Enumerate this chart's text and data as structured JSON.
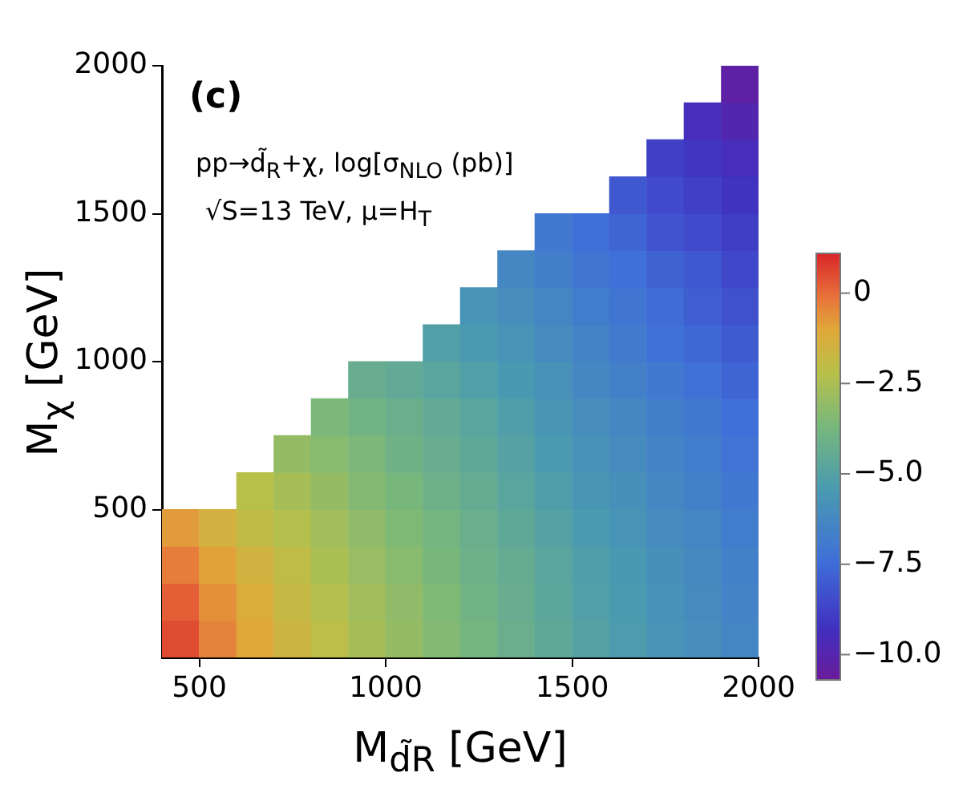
{
  "chart_data": {
    "type": "scatter",
    "xlabel": "M$_{d̃R}$ [GeV]",
    "ylabel": "M$_{χ}$ [GeV]",
    "annotations": [
      "(c)",
      "pp→d̃$_{R}$+χ, log[σ$_{NLO}$ (pb)]",
      "√S=13 TeV, μ=H$_{T}$"
    ],
    "x": [
      450,
      450,
      450,
      450,
      550,
      550,
      550,
      550,
      650,
      650,
      650,
      650,
      650,
      750,
      750,
      750,
      750,
      750,
      750,
      850,
      850,
      850,
      850,
      850,
      850,
      850,
      950,
      950,
      950,
      950,
      950,
      950,
      950,
      950,
      1050,
      1050,
      1050,
      1050,
      1050,
      1050,
      1050,
      1050,
      1150,
      1150,
      1150,
      1150,
      1150,
      1150,
      1150,
      1150,
      1150,
      1250,
      1250,
      1250,
      1250,
      1250,
      1250,
      1250,
      1250,
      1250,
      1250,
      1350,
      1350,
      1350,
      1350,
      1350,
      1350,
      1350,
      1350,
      1350,
      1350,
      1350,
      1450,
      1450,
      1450,
      1450,
      1450,
      1450,
      1450,
      1450,
      1450,
      1450,
      1450,
      1450,
      1550,
      1550,
      1550,
      1550,
      1550,
      1550,
      1550,
      1550,
      1550,
      1550,
      1550,
      1550,
      1650,
      1650,
      1650,
      1650,
      1650,
      1650,
      1650,
      1650,
      1650,
      1650,
      1650,
      1650,
      1650,
      1750,
      1750,
      1750,
      1750,
      1750,
      1750,
      1750,
      1750,
      1750,
      1750,
      1750,
      1750,
      1750,
      1750,
      1850,
      1850,
      1850,
      1850,
      1850,
      1850,
      1850,
      1850,
      1850,
      1850,
      1850,
      1850,
      1850,
      1850,
      1850,
      1950,
      1950,
      1950,
      1950,
      1950,
      1950,
      1950,
      1950,
      1950,
      1950,
      1950,
      1950,
      1950,
      1950,
      1950,
      1950
    ],
    "values": [
      62.5,
      187.5,
      312.5,
      437.5,
      62.5,
      187.5,
      312.5,
      437.5,
      62.5,
      187.5,
      312.5,
      437.5,
      562.5,
      62.5,
      187.5,
      312.5,
      437.5,
      562.5,
      687.5,
      62.5,
      187.5,
      312.5,
      437.5,
      562.5,
      687.5,
      812.5,
      62.5,
      187.5,
      312.5,
      437.5,
      562.5,
      687.5,
      812.5,
      937.5,
      62.5,
      187.5,
      312.5,
      437.5,
      562.5,
      687.5,
      812.5,
      937.5,
      62.5,
      187.5,
      312.5,
      437.5,
      562.5,
      687.5,
      812.5,
      937.5,
      1062.5,
      62.5,
      187.5,
      312.5,
      437.5,
      562.5,
      687.5,
      812.5,
      937.5,
      1062.5,
      1187.5,
      62.5,
      187.5,
      312.5,
      437.5,
      562.5,
      687.5,
      812.5,
      937.5,
      1062.5,
      1187.5,
      1312.5,
      62.5,
      187.5,
      312.5,
      437.5,
      562.5,
      687.5,
      812.5,
      937.5,
      1062.5,
      1187.5,
      1312.5,
      1437.5,
      62.5,
      187.5,
      312.5,
      437.5,
      562.5,
      687.5,
      812.5,
      937.5,
      1062.5,
      1187.5,
      1312.5,
      1437.5,
      62.5,
      187.5,
      312.5,
      437.5,
      562.5,
      687.5,
      812.5,
      937.5,
      1062.5,
      1187.5,
      1312.5,
      1437.5,
      1562.5,
      62.5,
      187.5,
      312.5,
      437.5,
      562.5,
      687.5,
      812.5,
      937.5,
      1062.5,
      1187.5,
      1312.5,
      1437.5,
      1562.5,
      1687.5,
      62.5,
      187.5,
      312.5,
      437.5,
      562.5,
      687.5,
      812.5,
      937.5,
      1062.5,
      1187.5,
      1312.5,
      1437.5,
      1562.5,
      1687.5,
      1812.5,
      62.5,
      187.5,
      312.5,
      437.5,
      562.5,
      687.5,
      812.5,
      937.5,
      1062.5,
      1187.5,
      1312.5,
      1437.5,
      1562.5,
      1687.5,
      1812.5,
      1937.5
    ],
    "cvalues": [
      0.5,
      0.2,
      -0.3,
      -0.8,
      -0.4,
      -0.6,
      -0.9,
      -1.4,
      -1.0,
      -1.2,
      -1.5,
      -1.9,
      -2.2,
      -1.6,
      -1.8,
      -2.0,
      -2.3,
      -2.6,
      -3.0,
      -2.1,
      -2.3,
      -2.5,
      -2.7,
      -3.0,
      -3.3,
      -3.6,
      -2.6,
      -2.7,
      -2.9,
      -3.1,
      -3.4,
      -3.6,
      -3.9,
      -4.3,
      -3.0,
      -3.1,
      -3.3,
      -3.5,
      -3.7,
      -4.0,
      -4.2,
      -4.5,
      -3.4,
      -3.5,
      -3.7,
      -3.8,
      -4.1,
      -4.3,
      -4.5,
      -4.8,
      -5.1,
      -3.8,
      -3.9,
      -4.1,
      -4.2,
      -4.4,
      -4.6,
      -4.8,
      -5.1,
      -5.4,
      -5.7,
      -4.2,
      -4.3,
      -4.4,
      -4.6,
      -4.8,
      -5.0,
      -5.2,
      -5.5,
      -5.7,
      -6.0,
      -6.3,
      -4.6,
      -4.7,
      -4.8,
      -5.0,
      -5.2,
      -5.4,
      -5.6,
      -5.8,
      -6.1,
      -6.4,
      -6.7,
      -7.0,
      -5.0,
      -5.1,
      -5.2,
      -5.4,
      -5.6,
      -5.8,
      -6.0,
      -6.3,
      -6.5,
      -6.8,
      -7.1,
      -7.4,
      -5.3,
      -5.4,
      -5.5,
      -5.7,
      -5.9,
      -6.1,
      -6.3,
      -6.6,
      -6.9,
      -7.1,
      -7.4,
      -7.7,
      -8.1,
      -5.7,
      -5.8,
      -5.9,
      -6.1,
      -6.3,
      -6.5,
      -6.7,
      -7.0,
      -7.3,
      -7.5,
      -7.8,
      -8.2,
      -8.5,
      -8.8,
      -6.0,
      -6.1,
      -6.2,
      -6.4,
      -6.6,
      -6.8,
      -7.0,
      -7.3,
      -7.6,
      -7.9,
      -8.1,
      -8.5,
      -8.8,
      -9.1,
      -9.5,
      -6.4,
      -6.5,
      -6.6,
      -6.8,
      -7.0,
      -7.2,
      -7.4,
      -7.7,
      -8.0,
      -8.3,
      -8.6,
      -8.9,
      -9.2,
      -9.5,
      -9.9,
      -10.3
    ],
    "marker": "square",
    "xlim": [
      400,
      2000
    ],
    "xticks": [
      500,
      1000,
      1500,
      2000
    ],
    "ylim": [
      0,
      2000
    ],
    "yticks": [
      500,
      1000,
      1500,
      2000
    ],
    "clim": [
      -10.7,
      1.1
    ],
    "cticks": [
      0,
      {
        "value": -2.5,
        "label": "−2.5"
      },
      {
        "value": -5,
        "label": "−5.0"
      },
      {
        "value": -7.5,
        "label": "−7.5"
      },
      {
        "value": -10,
        "label": "−10.0"
      }
    ],
    "grid": false,
    "legend": false
  }
}
